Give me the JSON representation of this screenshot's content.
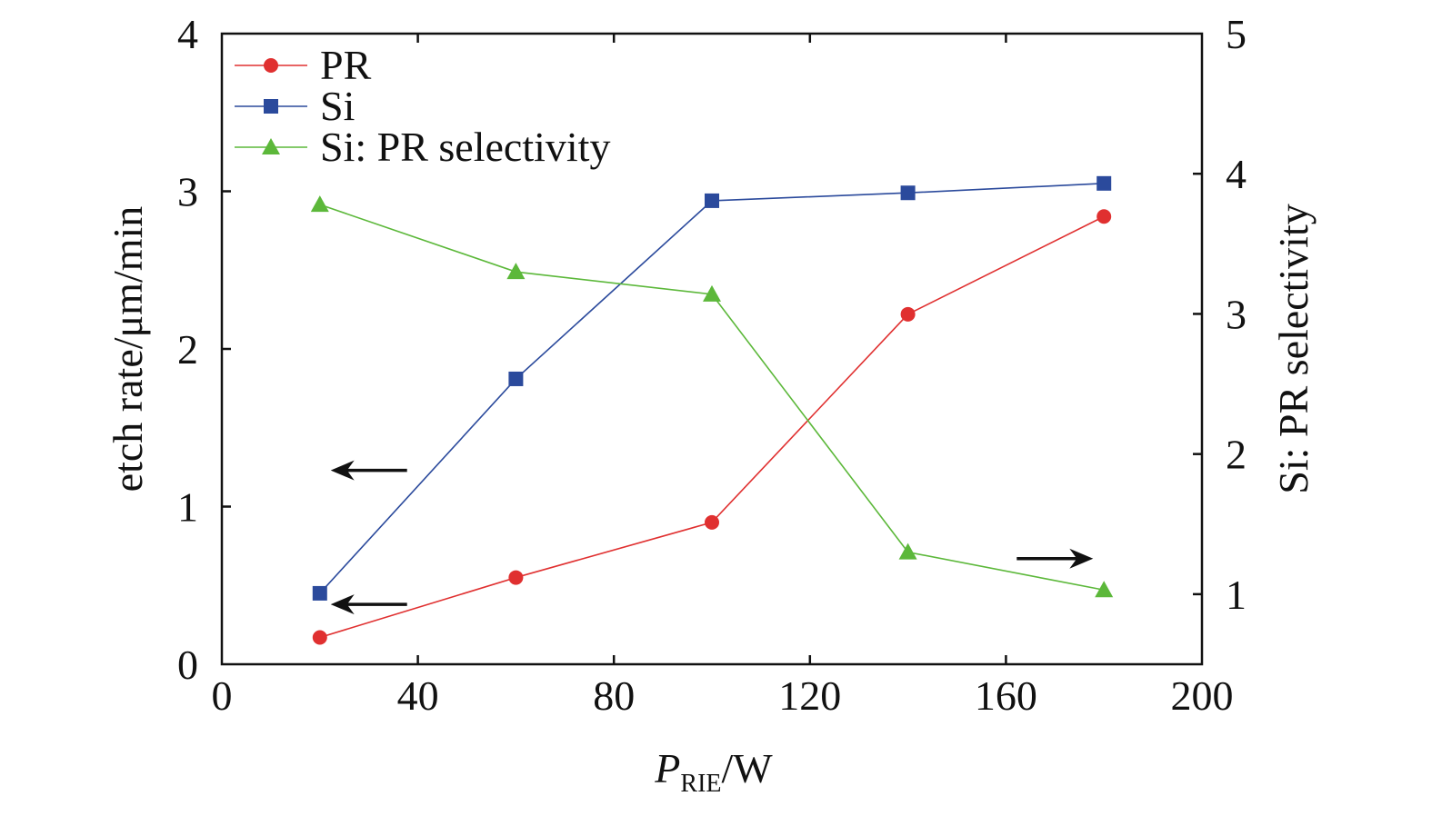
{
  "chart_data": {
    "type": "line",
    "x_axis": {
      "label_main": "P",
      "label_sub": "RIE",
      "label_unit": "/W",
      "range": [
        0,
        200
      ],
      "ticks": [
        "0",
        "40",
        "80",
        "120",
        "160",
        "200"
      ]
    },
    "y_axis_left": {
      "label": "etch rate/μm/min",
      "range": [
        0,
        4
      ],
      "ticks": [
        "0",
        "1",
        "2",
        "3",
        "4"
      ]
    },
    "y_axis_right": {
      "label": "Si: PR selectivity",
      "range": [
        0.5,
        5
      ],
      "ticks": [
        "1",
        "2",
        "3",
        "4",
        "5"
      ]
    },
    "series": [
      {
        "name": "PR",
        "axis": "left",
        "color": "#e03030",
        "marker": "circle",
        "x": [
          20,
          60,
          100,
          140,
          180
        ],
        "y": [
          0.17,
          0.55,
          0.9,
          2.22,
          2.84
        ]
      },
      {
        "name": "Si",
        "axis": "left",
        "color": "#2b4a9c",
        "marker": "square",
        "x": [
          20,
          60,
          100,
          140,
          180
        ],
        "y": [
          0.45,
          1.81,
          2.94,
          2.99,
          3.05
        ]
      },
      {
        "name": "Si: PR selectivity",
        "axis": "right",
        "color": "#5cb83a",
        "marker": "triangle",
        "x": [
          20,
          60,
          100,
          140,
          180
        ],
        "y": [
          3.78,
          3.3,
          3.14,
          1.3,
          1.03
        ]
      }
    ],
    "annotations": [
      {
        "type": "arrow",
        "direction": "left",
        "indicates_axis": "left",
        "at_x": 30,
        "at_y_left": 1.23
      },
      {
        "type": "arrow",
        "direction": "left",
        "indicates_axis": "left",
        "at_x": 30,
        "at_y_left": 0.38
      },
      {
        "type": "arrow",
        "direction": "right",
        "indicates_axis": "right",
        "at_x": 170,
        "at_y_left": 0.67
      }
    ],
    "legend_position": "top-left",
    "grid": false
  }
}
